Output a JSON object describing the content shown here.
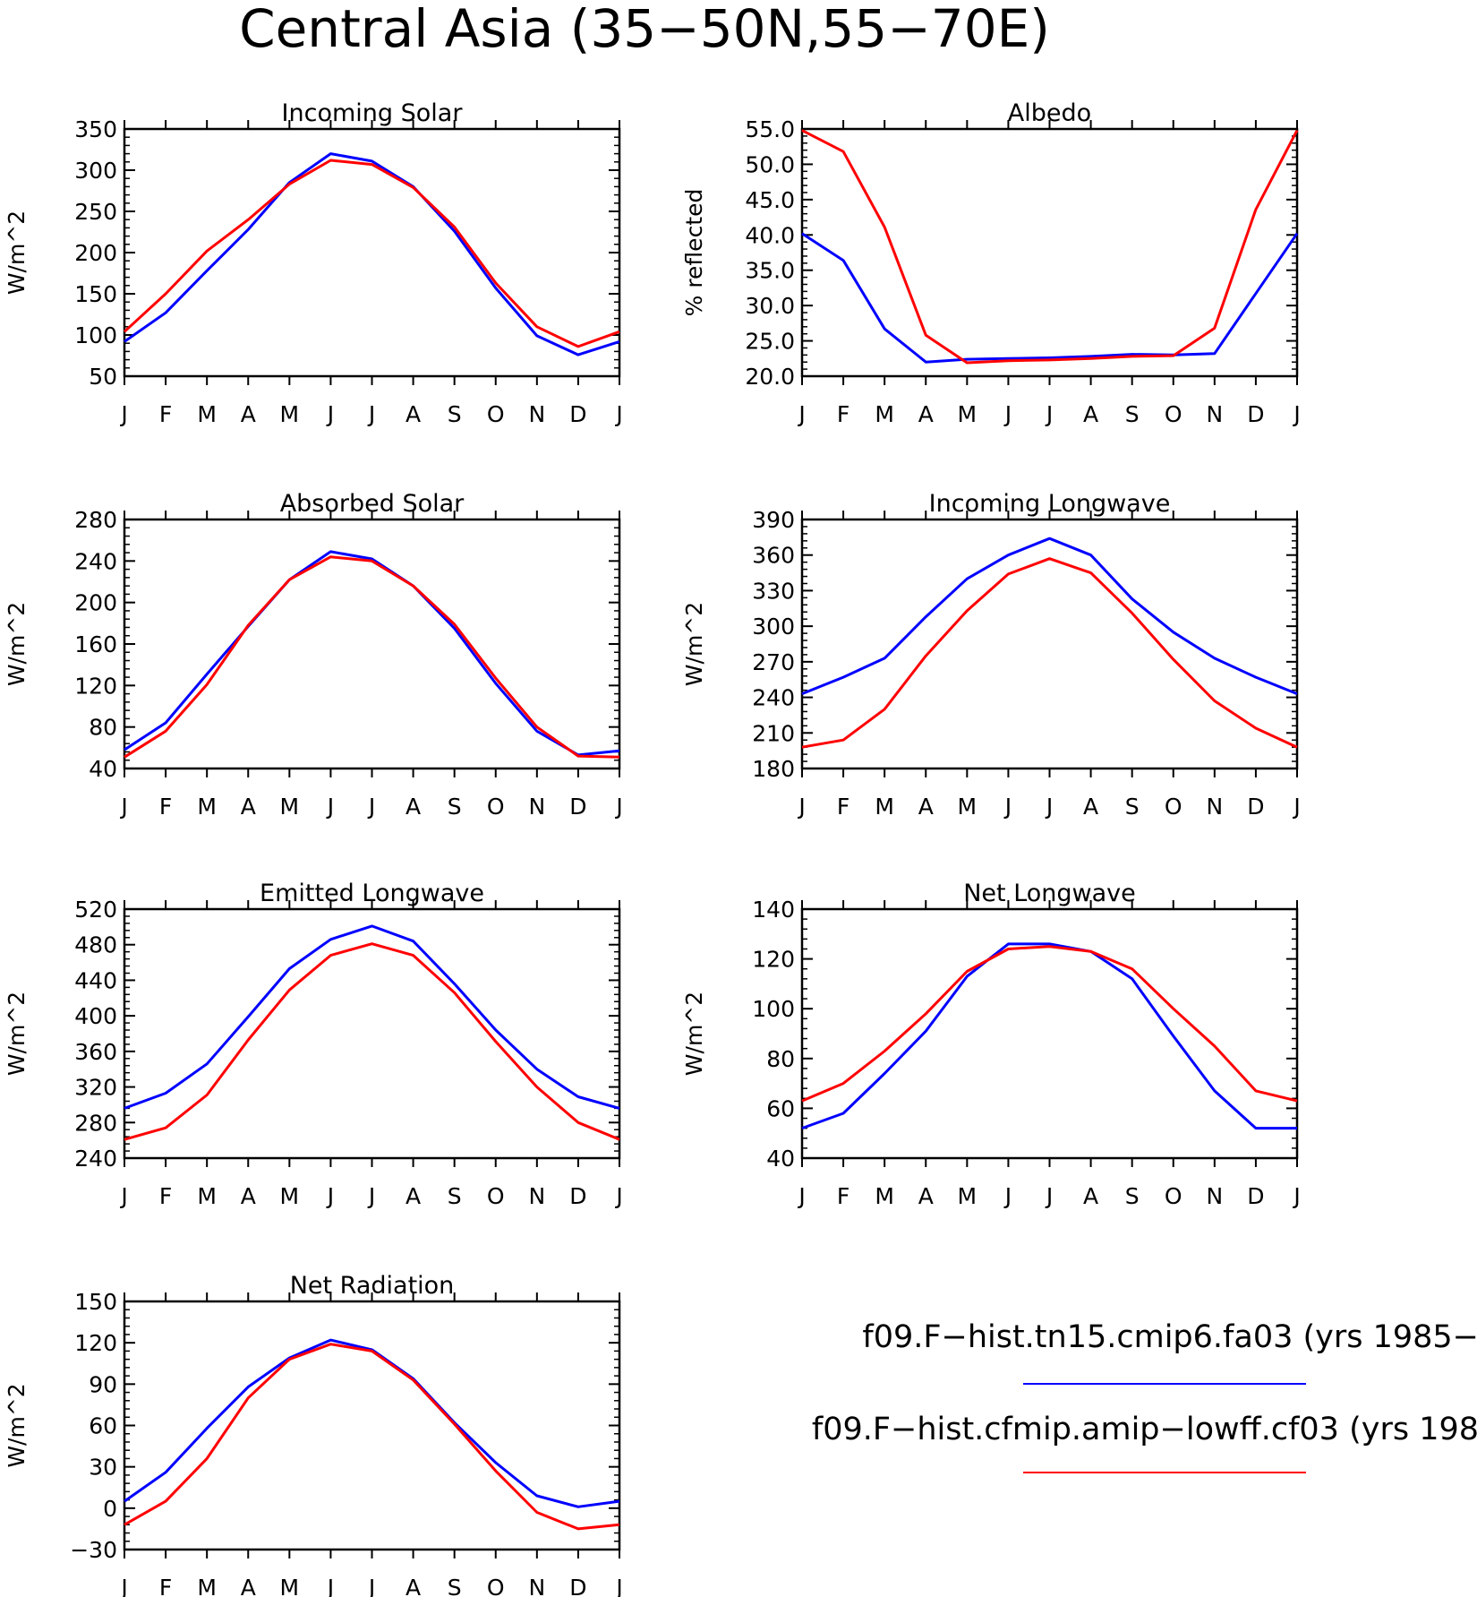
{
  "title": "Central Asia (35−50N,55−70E)",
  "months": [
    "J",
    "F",
    "M",
    "A",
    "M",
    "J",
    "J",
    "A",
    "S",
    "O",
    "N",
    "D",
    "J"
  ],
  "colors": {
    "case1": "#0000ff",
    "case2": "#ff0000"
  },
  "legend": [
    {
      "label": "f09.F−hist.tn15.cmip6.fa03 (yrs 1985−",
      "color": "#0000ff"
    },
    {
      "label": "f09.F−hist.cfmip.amip−lowff.cf03 (yrs 198",
      "color": "#ff0000"
    }
  ],
  "chart_data": [
    {
      "type": "line",
      "title": "Incoming Solar",
      "ylabel": "W/m^2",
      "ylim": [
        50,
        350
      ],
      "yticks": [
        "350",
        "300",
        "250",
        "200",
        "150",
        "100",
        "50"
      ],
      "series": [
        {
          "color": "#0000ff",
          "values": [
            92,
            127,
            178,
            228,
            285,
            320,
            311,
            280,
            226,
            157,
            99,
            76,
            92
          ]
        },
        {
          "color": "#ff0000",
          "values": [
            104,
            150,
            202,
            240,
            283,
            312,
            307,
            279,
            231,
            163,
            110,
            86,
            104
          ]
        }
      ]
    },
    {
      "type": "line",
      "title": "Albedo",
      "ylabel": "% reflected",
      "ylim": [
        20,
        55
      ],
      "yticks": [
        "55.0",
        "50.0",
        "45.0",
        "40.0",
        "35.0",
        "30.0",
        "25.0",
        "20.0"
      ],
      "series": [
        {
          "color": "#0000ff",
          "values": [
            40.2,
            36.4,
            26.7,
            22.0,
            22.4,
            22.5,
            22.6,
            22.8,
            23.1,
            23.0,
            23.2,
            31.7,
            40.2
          ]
        },
        {
          "color": "#ff0000",
          "values": [
            54.8,
            51.8,
            41.1,
            25.8,
            21.9,
            22.2,
            22.3,
            22.5,
            22.8,
            22.9,
            26.8,
            43.6,
            54.8
          ]
        }
      ]
    },
    {
      "type": "line",
      "title": "Absorbed Solar",
      "ylabel": "W/m^2",
      "ylim": [
        40,
        280
      ],
      "yticks": [
        "280",
        "240",
        "200",
        "160",
        "120",
        "80",
        "40"
      ],
      "series": [
        {
          "color": "#0000ff",
          "values": [
            58,
            84,
            131,
            177,
            222,
            249,
            242,
            216,
            175,
            122,
            76,
            53,
            57
          ]
        },
        {
          "color": "#ff0000",
          "values": [
            51,
            76,
            121,
            178,
            222,
            244,
            240,
            216,
            179,
            127,
            80,
            52,
            51
          ]
        }
      ]
    },
    {
      "type": "line",
      "title": "Incoming Longwave",
      "ylabel": "W/m^2",
      "ylim": [
        180,
        390
      ],
      "yticks": [
        "390",
        "360",
        "330",
        "300",
        "270",
        "240",
        "210",
        "180"
      ],
      "series": [
        {
          "color": "#0000ff",
          "values": [
            243,
            257,
            273,
            308,
            340,
            360,
            374,
            360,
            323,
            295,
            273,
            257,
            243
          ]
        },
        {
          "color": "#ff0000",
          "values": [
            198,
            204,
            230,
            275,
            313,
            344,
            357,
            345,
            311,
            272,
            237,
            214,
            198
          ]
        }
      ]
    },
    {
      "type": "line",
      "title": "Emitted Longwave",
      "ylabel": "W/m^2",
      "ylim": [
        240,
        520
      ],
      "yticks": [
        "520",
        "480",
        "440",
        "400",
        "360",
        "320",
        "280",
        "240"
      ],
      "series": [
        {
          "color": "#0000ff",
          "values": [
            296,
            313,
            346,
            399,
            453,
            486,
            501,
            484,
            436,
            384,
            340,
            309,
            296
          ]
        },
        {
          "color": "#ff0000",
          "values": [
            261,
            274,
            311,
            373,
            429,
            468,
            481,
            468,
            426,
            371,
            320,
            280,
            261
          ]
        }
      ]
    },
    {
      "type": "line",
      "title": "Net Longwave",
      "ylabel": "W/m^2",
      "ylim": [
        40,
        140
      ],
      "yticks": [
        "140",
        "120",
        "100",
        "80",
        "60",
        "40"
      ],
      "series": [
        {
          "color": "#0000ff",
          "values": [
            52,
            58,
            74,
            91,
            113,
            126,
            126,
            123,
            112,
            89,
            67,
            52,
            52
          ]
        },
        {
          "color": "#ff0000",
          "values": [
            63,
            70,
            83,
            98,
            115,
            124,
            125,
            123,
            116,
            100,
            85,
            67,
            63
          ]
        }
      ]
    },
    {
      "type": "line",
      "title": "Net Radiation",
      "ylabel": "W/m^2",
      "ylim": [
        -30,
        150
      ],
      "yticks": [
        "150",
        "120",
        "90",
        "60",
        "30",
        "0",
        "−30"
      ],
      "series": [
        {
          "color": "#0000ff",
          "values": [
            5,
            26,
            58,
            88,
            109,
            122,
            115,
            94,
            62,
            33,
            9,
            1,
            5
          ]
        },
        {
          "color": "#ff0000",
          "values": [
            -12,
            5,
            36,
            80,
            108,
            119,
            114,
            93,
            61,
            27,
            -3,
            -15,
            -12
          ]
        }
      ]
    }
  ]
}
